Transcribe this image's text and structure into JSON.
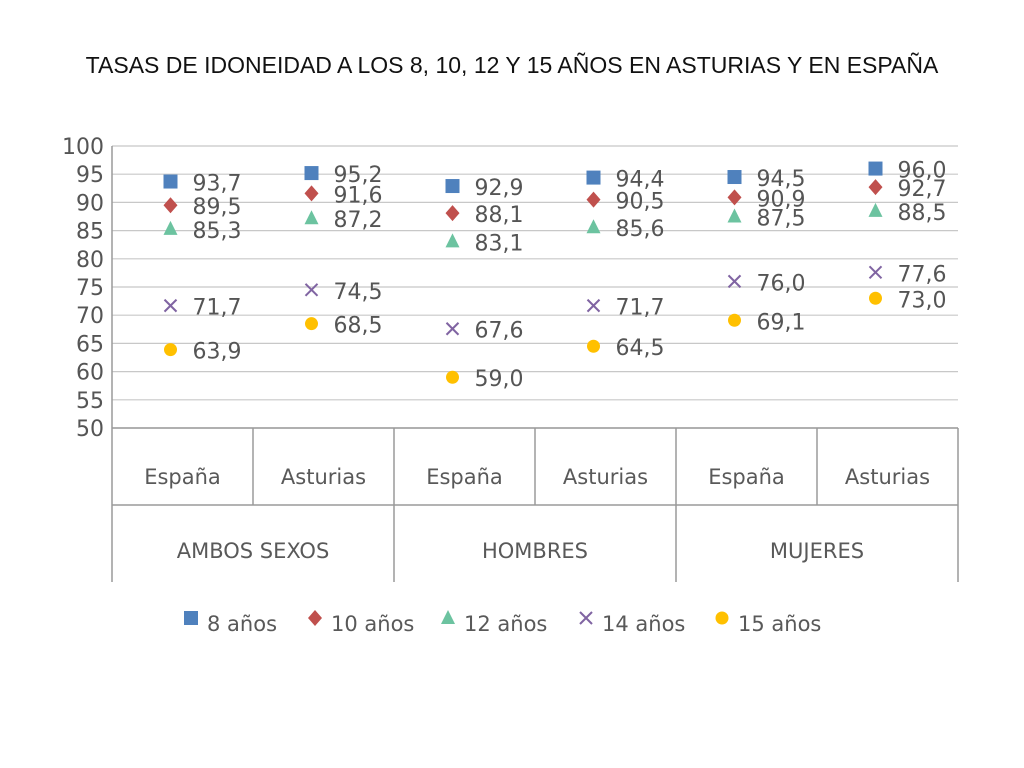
{
  "page": {
    "title": "TASAS DE IDONEIDAD A LOS 8, 10, 12 Y 15 AÑOS EN ASTURIAS Y EN ESPAÑA"
  },
  "chart_data": {
    "type": "scatter",
    "title": "TASAS DE IDONEIDAD A LOS 8, 10, 12 Y 15 AÑOS EN ASTURIAS Y EN ESPAÑA",
    "ylim": [
      50,
      100
    ],
    "yticks": [
      50,
      55,
      60,
      65,
      70,
      75,
      80,
      85,
      90,
      95,
      100
    ],
    "grid": true,
    "legend_position": "bottom",
    "categories": [
      "España",
      "Asturias",
      "España",
      "Asturias",
      "España",
      "Asturias"
    ],
    "groups": [
      {
        "label": "AMBOS SEXOS",
        "categories": [
          "España",
          "Asturias"
        ]
      },
      {
        "label": "HOMBRES",
        "categories": [
          "España",
          "Asturias"
        ]
      },
      {
        "label": "MUJERES",
        "categories": [
          "España",
          "Asturias"
        ]
      }
    ],
    "series": [
      {
        "name": "8 años",
        "marker": "square",
        "color": "#4f81bd",
        "values": [
          93.7,
          95.2,
          92.9,
          94.4,
          94.5,
          96.0
        ],
        "labels": [
          "93,7",
          "95,2",
          "92,9",
          "94,4",
          "94,5",
          "96,0"
        ]
      },
      {
        "name": "10 años",
        "marker": "diamond",
        "color": "#c0504d",
        "values": [
          89.5,
          91.6,
          88.1,
          90.5,
          90.9,
          92.7
        ],
        "labels": [
          "89,5",
          "91,6",
          "88,1",
          "90,5",
          "90,9",
          "92,7"
        ]
      },
      {
        "name": "12 años",
        "marker": "triangle",
        "color": "#6cc3a0",
        "values": [
          85.3,
          87.2,
          83.1,
          85.6,
          87.5,
          88.5
        ],
        "labels": [
          "85,3",
          "87,2",
          "83,1",
          "85,6",
          "87,5",
          "88,5"
        ]
      },
      {
        "name": "14 años",
        "marker": "x",
        "color": "#8064a2",
        "values": [
          71.7,
          74.5,
          67.6,
          71.7,
          76.0,
          77.6
        ],
        "labels": [
          "71,7",
          "74,5",
          "67,6",
          "71,7",
          "76,0",
          "77,6"
        ]
      },
      {
        "name": "15 años",
        "marker": "circle",
        "color": "#ffc000",
        "values": [
          63.9,
          68.5,
          59.0,
          64.5,
          69.1,
          73.0
        ],
        "labels": [
          "63,9",
          "68,5",
          "59,0",
          "64,5",
          "69,1",
          "73,0"
        ]
      }
    ]
  }
}
